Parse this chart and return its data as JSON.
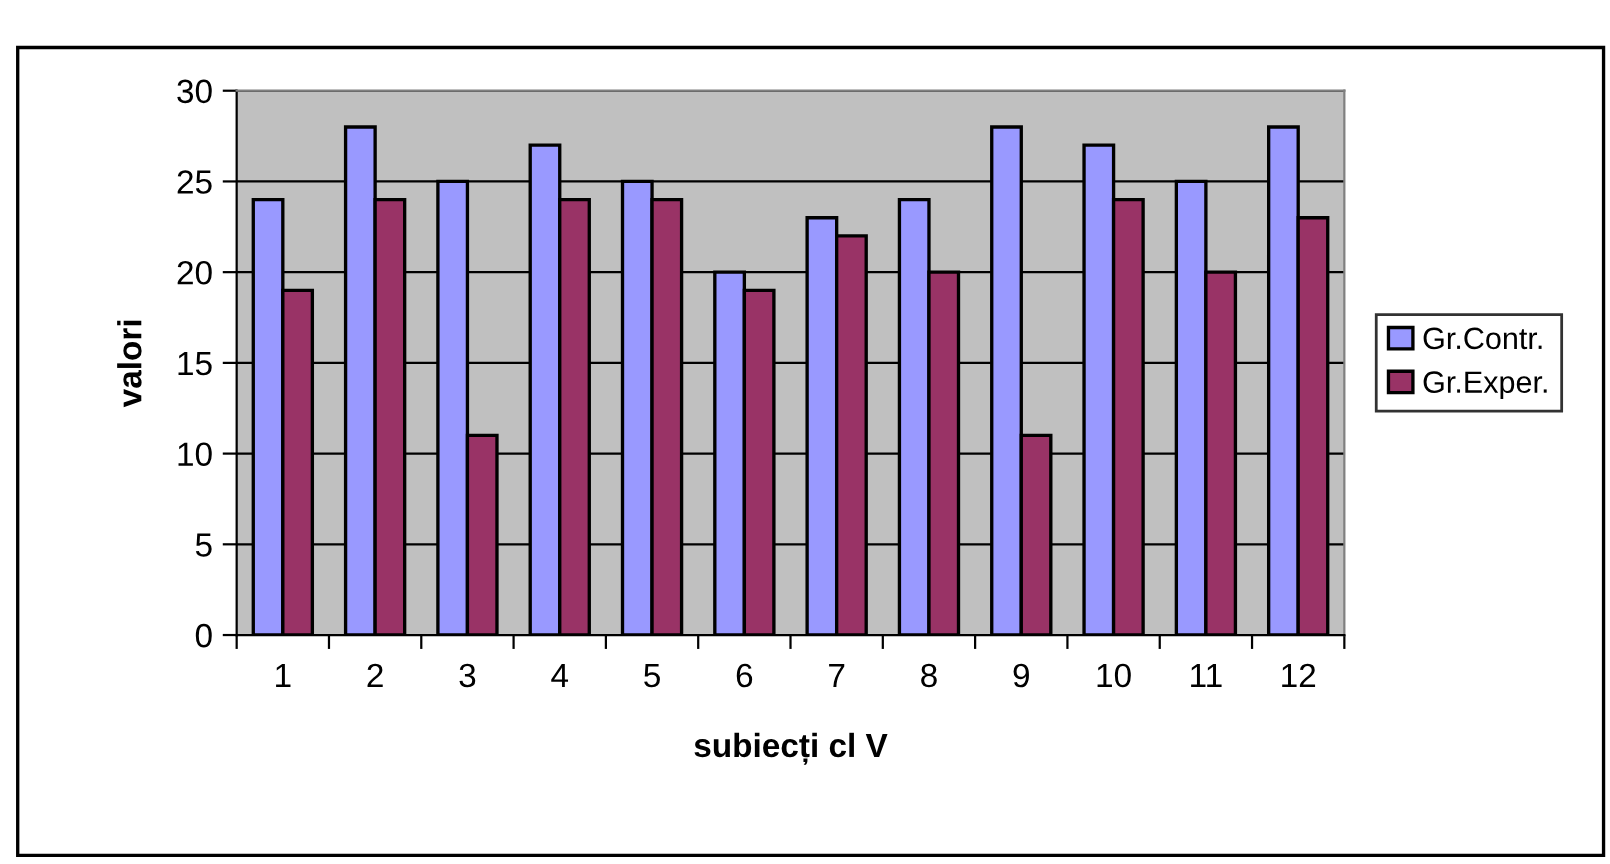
{
  "chart_data": {
    "type": "bar",
    "xlabel": "subiecți cl V",
    "ylabel": "valori",
    "categories": [
      "1",
      "2",
      "3",
      "4",
      "5",
      "6",
      "7",
      "8",
      "9",
      "10",
      "11",
      "12"
    ],
    "series": [
      {
        "name": "Gr.Contr.",
        "color": "#9999ff",
        "values": [
          24,
          28,
          25,
          27,
          25,
          20,
          23,
          24,
          28,
          27,
          25,
          28
        ]
      },
      {
        "name": "Gr.Exper.",
        "color": "#993366",
        "values": [
          19,
          24,
          11,
          24,
          24,
          19,
          22,
          20,
          11,
          24,
          20,
          23
        ]
      }
    ],
    "ylim": [
      0,
      30
    ],
    "yticks": [
      0,
      5,
      10,
      15,
      20,
      25,
      30
    ],
    "grid": "y",
    "legend": "right"
  }
}
